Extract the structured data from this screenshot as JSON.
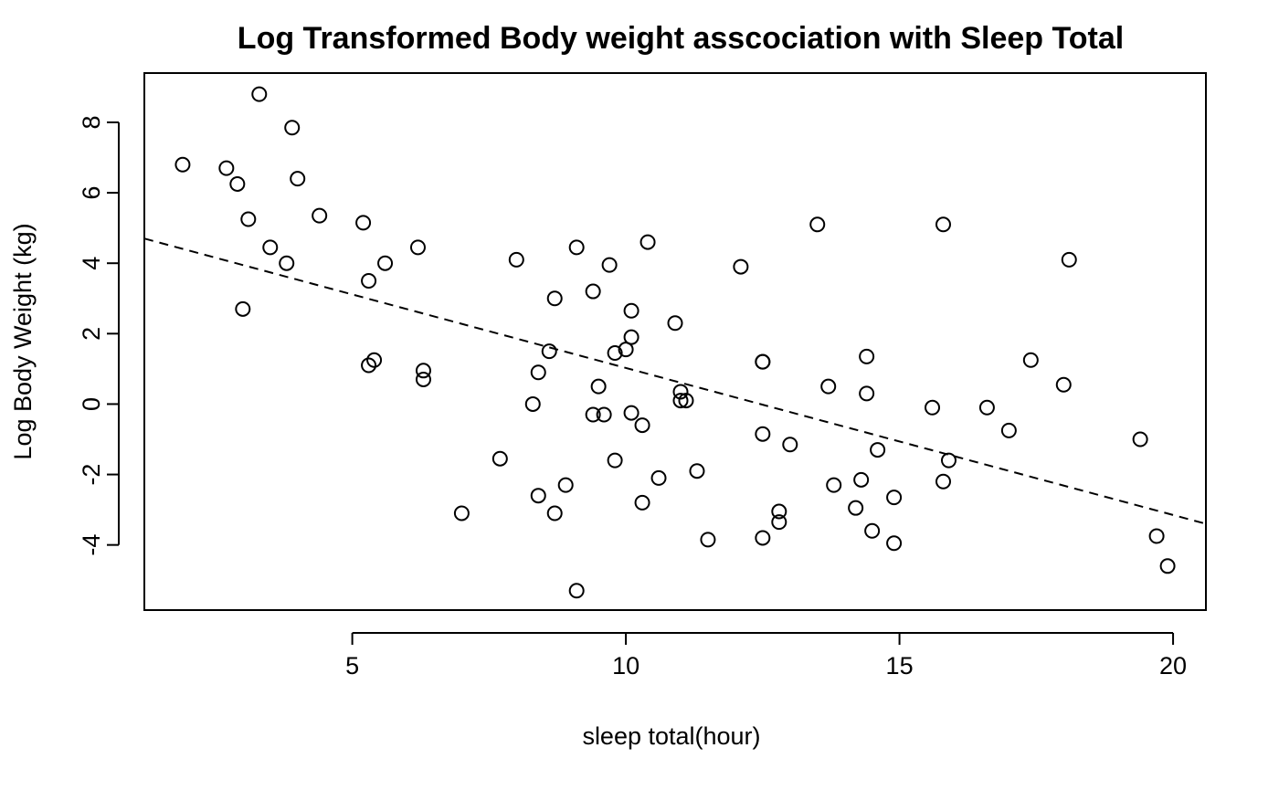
{
  "chart_data": {
    "type": "scatter",
    "title": "Log Transformed Body weight asscociation with Sleep Total",
    "xlabel": "sleep total(hour)",
    "ylabel": "Log Body Weight (kg)",
    "xlim": [
      1.2,
      20.6
    ],
    "ylim": [
      -5.85,
      9.4
    ],
    "xticks": [
      5,
      10,
      15,
      20
    ],
    "yticks": [
      -4,
      -2,
      0,
      2,
      4,
      6,
      8
    ],
    "xtick_labels": [
      "5",
      "10",
      "15",
      "20"
    ],
    "ytick_labels": [
      "-4",
      "-2",
      "0",
      "2",
      "4",
      "6",
      "8"
    ],
    "grid": false,
    "trendline": {
      "style": "dashed",
      "x": [
        1.2,
        20.6
      ],
      "y": [
        4.7,
        -3.4
      ]
    },
    "points": [
      {
        "x": 1.9,
        "y": 6.8
      },
      {
        "x": 2.7,
        "y": 6.7
      },
      {
        "x": 2.9,
        "y": 6.25
      },
      {
        "x": 3.1,
        "y": 5.25
      },
      {
        "x": 3.0,
        "y": 2.7
      },
      {
        "x": 3.3,
        "y": 8.8
      },
      {
        "x": 3.5,
        "y": 4.45
      },
      {
        "x": 3.8,
        "y": 4.0
      },
      {
        "x": 3.9,
        "y": 7.85
      },
      {
        "x": 4.0,
        "y": 6.4
      },
      {
        "x": 4.4,
        "y": 5.35
      },
      {
        "x": 5.2,
        "y": 5.15
      },
      {
        "x": 5.3,
        "y": 3.5
      },
      {
        "x": 5.3,
        "y": 1.1
      },
      {
        "x": 5.4,
        "y": 1.25
      },
      {
        "x": 5.6,
        "y": 4.0
      },
      {
        "x": 6.2,
        "y": 4.45
      },
      {
        "x": 6.3,
        "y": 0.95
      },
      {
        "x": 6.3,
        "y": 0.7
      },
      {
        "x": 7.0,
        "y": -3.1
      },
      {
        "x": 7.7,
        "y": -1.55
      },
      {
        "x": 8.0,
        "y": 4.1
      },
      {
        "x": 8.3,
        "y": 0.0
      },
      {
        "x": 8.4,
        "y": 0.9
      },
      {
        "x": 8.4,
        "y": -2.6
      },
      {
        "x": 8.6,
        "y": 1.5
      },
      {
        "x": 8.7,
        "y": 3.0
      },
      {
        "x": 8.7,
        "y": -3.1
      },
      {
        "x": 8.9,
        "y": -2.3
      },
      {
        "x": 9.1,
        "y": 4.45
      },
      {
        "x": 9.1,
        "y": -5.3
      },
      {
        "x": 9.4,
        "y": 3.2
      },
      {
        "x": 9.4,
        "y": -0.3
      },
      {
        "x": 9.5,
        "y": 0.5
      },
      {
        "x": 9.6,
        "y": -0.3
      },
      {
        "x": 9.7,
        "y": 3.95
      },
      {
        "x": 9.8,
        "y": 1.45
      },
      {
        "x": 9.8,
        "y": -1.6
      },
      {
        "x": 10.0,
        "y": 1.55
      },
      {
        "x": 10.1,
        "y": 2.65
      },
      {
        "x": 10.1,
        "y": 1.9
      },
      {
        "x": 10.1,
        "y": -0.25
      },
      {
        "x": 10.3,
        "y": -0.6
      },
      {
        "x": 10.3,
        "y": -2.8
      },
      {
        "x": 10.4,
        "y": 4.6
      },
      {
        "x": 10.6,
        "y": -2.1
      },
      {
        "x": 10.9,
        "y": 2.3
      },
      {
        "x": 11.0,
        "y": 0.35
      },
      {
        "x": 11.0,
        "y": 0.1
      },
      {
        "x": 11.1,
        "y": 0.1
      },
      {
        "x": 11.3,
        "y": -1.9
      },
      {
        "x": 11.5,
        "y": -3.85
      },
      {
        "x": 12.1,
        "y": 3.9
      },
      {
        "x": 12.5,
        "y": 1.2
      },
      {
        "x": 12.5,
        "y": 1.2
      },
      {
        "x": 12.5,
        "y": -0.85
      },
      {
        "x": 12.5,
        "y": -3.8
      },
      {
        "x": 12.8,
        "y": -3.05
      },
      {
        "x": 12.8,
        "y": -3.35
      },
      {
        "x": 13.0,
        "y": -1.15
      },
      {
        "x": 13.5,
        "y": 5.1
      },
      {
        "x": 13.7,
        "y": 0.5
      },
      {
        "x": 13.8,
        "y": -2.3
      },
      {
        "x": 14.2,
        "y": -2.95
      },
      {
        "x": 14.3,
        "y": -2.15
      },
      {
        "x": 14.4,
        "y": 1.35
      },
      {
        "x": 14.4,
        "y": 0.3
      },
      {
        "x": 14.5,
        "y": -3.6
      },
      {
        "x": 14.6,
        "y": -1.3
      },
      {
        "x": 14.9,
        "y": -2.65
      },
      {
        "x": 14.9,
        "y": -3.95
      },
      {
        "x": 15.6,
        "y": -0.1
      },
      {
        "x": 15.8,
        "y": 5.1
      },
      {
        "x": 15.8,
        "y": -2.2
      },
      {
        "x": 15.9,
        "y": -1.6
      },
      {
        "x": 16.6,
        "y": -0.1
      },
      {
        "x": 17.0,
        "y": -0.75
      },
      {
        "x": 17.4,
        "y": 1.25
      },
      {
        "x": 18.0,
        "y": 0.55
      },
      {
        "x": 18.1,
        "y": 4.1
      },
      {
        "x": 19.4,
        "y": -1.0
      },
      {
        "x": 19.7,
        "y": -3.75
      },
      {
        "x": 19.9,
        "y": -4.6
      }
    ]
  }
}
